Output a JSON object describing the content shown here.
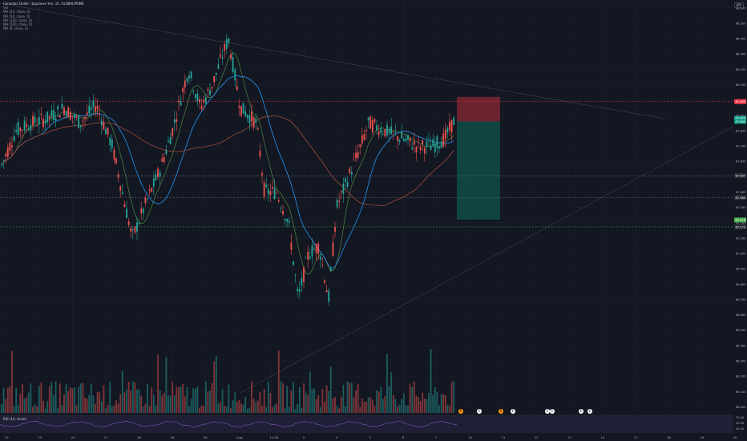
{
  "header": {
    "symbol_line": "Canadian Dollar / Japanese Yen, 1h, GLOBALPRIME",
    "indicators": [
      "Vol",
      "MA (20, close, 0)",
      "MA (50, close, 0)",
      "MA (100, close, 0)",
      "MA (200, close, 0)",
      "MA (9, close, 0)"
    ]
  },
  "currency_label": "JPY",
  "rsi_label": "RSI (14, close)",
  "price_axis": {
    "labels": [
      "88.600",
      "88.500",
      "88.400",
      "88.300",
      "88.200",
      "88.100",
      "88.000",
      "87.900",
      "87.800",
      "87.700",
      "87.600",
      "87.500",
      "87.400",
      "87.300",
      "87.200",
      "87.100",
      "87.000",
      "86.900",
      "86.800",
      "86.700",
      "86.600",
      "86.500",
      "86.400",
      "86.300",
      "86.200",
      "86.100",
      "86.000"
    ],
    "price_tags": [
      {
        "text": "87.989",
        "color": "#f23645"
      },
      {
        "text": "87.879",
        "color": "#26a69a"
      },
      {
        "text": "87.860",
        "color": "#089981"
      },
      {
        "text": "87.507",
        "color": "#2a2e39"
      },
      {
        "text": "87.364",
        "color": "#2a2e39"
      },
      {
        "text": "87.218",
        "color": "#4caf50"
      },
      {
        "text": "87.173",
        "color": "#2a2e39"
      }
    ]
  },
  "rsi_axis": [
    "70.00",
    "50.00",
    "30.00"
  ],
  "time_axis": [
    "22",
    "23",
    "24",
    "27",
    "28",
    "29",
    "30",
    "Aug",
    "11:00",
    "3",
    "4",
    "5",
    "6",
    "7",
    "10",
    "11",
    "12",
    "13",
    "14",
    "17",
    "18",
    "19",
    "20"
  ],
  "events": [
    {
      "glyph": "E",
      "color": "#ff9800"
    },
    {
      "glyph": "E",
      "color": "#fff"
    },
    {
      "glyph": "E",
      "color": "#ff9800"
    },
    {
      "glyph": "E",
      "color": "#fff"
    },
    {
      "glyph": "E",
      "color": "#fff"
    },
    {
      "glyph": "E",
      "color": "#fff"
    },
    {
      "glyph": "E",
      "color": "#fff"
    },
    {
      "glyph": "E",
      "color": "#fff"
    }
  ],
  "colors": {
    "background": "#131722",
    "up": "#26a69a",
    "down": "#ef5350",
    "ma_blue": "#2196f3",
    "ma_brown": "#a04a3a",
    "ma_green": "#4a7a3a",
    "rsi": "#7e57c2"
  }
}
